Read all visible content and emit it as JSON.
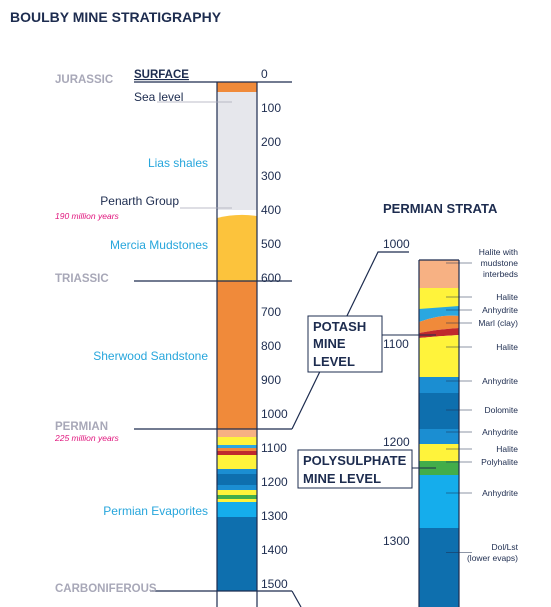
{
  "title": "BOULBY MINE STRATIGRAPHY",
  "left_column": {
    "surface_label": "SURFACE",
    "sea_level_label": "Sea level",
    "eras": {
      "jurassic": "JURASSIC",
      "triassic": "TRIASSIC",
      "permian": "PERMIAN",
      "carboniferous": "CARBONIFEROUS"
    },
    "units": {
      "lias": "Lias shales",
      "penarth": "Penarth Group",
      "mercia": "Mercia Mudstones",
      "sherwood": "Sherwood Sandstone",
      "evaporites": "Permian Evaporites"
    },
    "ages": {
      "triassic_start": "190 million years",
      "permian_start": "225 million years"
    },
    "depth_labels": [
      "0",
      "100",
      "200",
      "300",
      "400",
      "500",
      "600",
      "700",
      "800",
      "900",
      "1000",
      "1100",
      "1200",
      "1300",
      "1400",
      "1500"
    ]
  },
  "right_column": {
    "title": "PERMIAN STRATA",
    "depth_labels": [
      "1000",
      "1100",
      "1200",
      "1300"
    ],
    "layers": [
      {
        "label": "Halite with mudstone interbeds",
        "lines": [
          "Halite with",
          "mudstone",
          "interbeds"
        ],
        "color": "#f7b183"
      },
      {
        "label": "Halite",
        "color": "#fff33b"
      },
      {
        "label": "Anhydrite",
        "color": "#2aa7e0"
      },
      {
        "label": "Marl (clay)",
        "color": "#f08a3a"
      },
      {
        "label": "Halite",
        "color": "#fff33b"
      },
      {
        "label": "Anhydrite",
        "color": "#1b8ed2"
      },
      {
        "label": "Dolomite",
        "color": "#0e6fae"
      },
      {
        "label": "Anhydrite",
        "color": "#1b8ed2"
      },
      {
        "label": "Halite",
        "color": "#fff33b"
      },
      {
        "label": "Polyhalite",
        "color": "#42ad4a"
      },
      {
        "label": "Anhydrite",
        "color": "#15adec"
      },
      {
        "label": "Dol/Lst (lower evaps)",
        "lines": [
          "Dol/Lst",
          "(lower evaps)"
        ],
        "color": "#0e6fae"
      }
    ]
  },
  "callouts": {
    "potash": [
      "POTASH",
      "MINE",
      "LEVEL"
    ],
    "polysulphate": [
      "POLYSULPHATE",
      "MINE LEVEL"
    ]
  },
  "colors": {
    "navy": "#1d2c4f",
    "orange": "#f08a3a",
    "light_grey": "#e6e7ec",
    "mudstone_yellow": "#fcc33c",
    "halite_yellow": "#fff33b",
    "potash_red": "#c0282d",
    "blue": "#1b8ed2",
    "dark_blue": "#0e6fae",
    "sky_blue": "#15adec",
    "green": "#42ad4a"
  }
}
